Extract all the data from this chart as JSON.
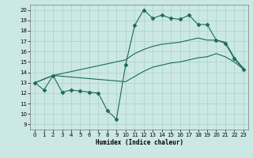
{
  "xlabel": "Humidex (Indice chaleur)",
  "bg_color": "#cce8e5",
  "grid_color": "#aacfcc",
  "line_color": "#1a6b5a",
  "xlim": [
    -0.5,
    23.5
  ],
  "ylim": [
    8.5,
    20.5
  ],
  "yticks": [
    9,
    10,
    11,
    12,
    13,
    14,
    15,
    16,
    17,
    18,
    19,
    20
  ],
  "xticks": [
    0,
    1,
    2,
    3,
    4,
    5,
    6,
    7,
    8,
    9,
    10,
    11,
    12,
    13,
    14,
    15,
    16,
    17,
    18,
    19,
    20,
    21,
    22,
    23
  ],
  "line1_x": [
    0,
    1,
    2,
    3,
    4,
    5,
    6,
    7,
    8,
    9,
    10,
    11,
    12,
    13,
    14,
    15,
    16,
    17,
    18,
    19,
    20,
    21,
    22,
    23
  ],
  "line1_y": [
    13.0,
    12.3,
    13.7,
    12.1,
    12.3,
    12.2,
    12.1,
    12.0,
    10.3,
    9.5,
    14.7,
    18.5,
    20.0,
    19.2,
    19.5,
    19.2,
    19.1,
    19.5,
    18.6,
    18.6,
    17.1,
    16.8,
    15.3,
    14.3
  ],
  "line2_x": [
    0,
    2,
    10,
    11,
    12,
    13,
    14,
    15,
    16,
    17,
    18,
    19,
    20,
    21,
    22,
    23
  ],
  "line2_y": [
    13.0,
    13.7,
    15.2,
    15.8,
    16.2,
    16.5,
    16.7,
    16.8,
    16.9,
    17.1,
    17.3,
    17.1,
    17.1,
    16.9,
    15.4,
    14.4
  ],
  "line3_x": [
    0,
    2,
    10,
    11,
    12,
    13,
    14,
    15,
    16,
    17,
    18,
    19,
    20,
    21,
    22,
    23
  ],
  "line3_y": [
    13.0,
    13.7,
    13.1,
    13.6,
    14.1,
    14.5,
    14.7,
    14.9,
    15.0,
    15.2,
    15.4,
    15.5,
    15.8,
    15.5,
    15.0,
    14.3
  ]
}
